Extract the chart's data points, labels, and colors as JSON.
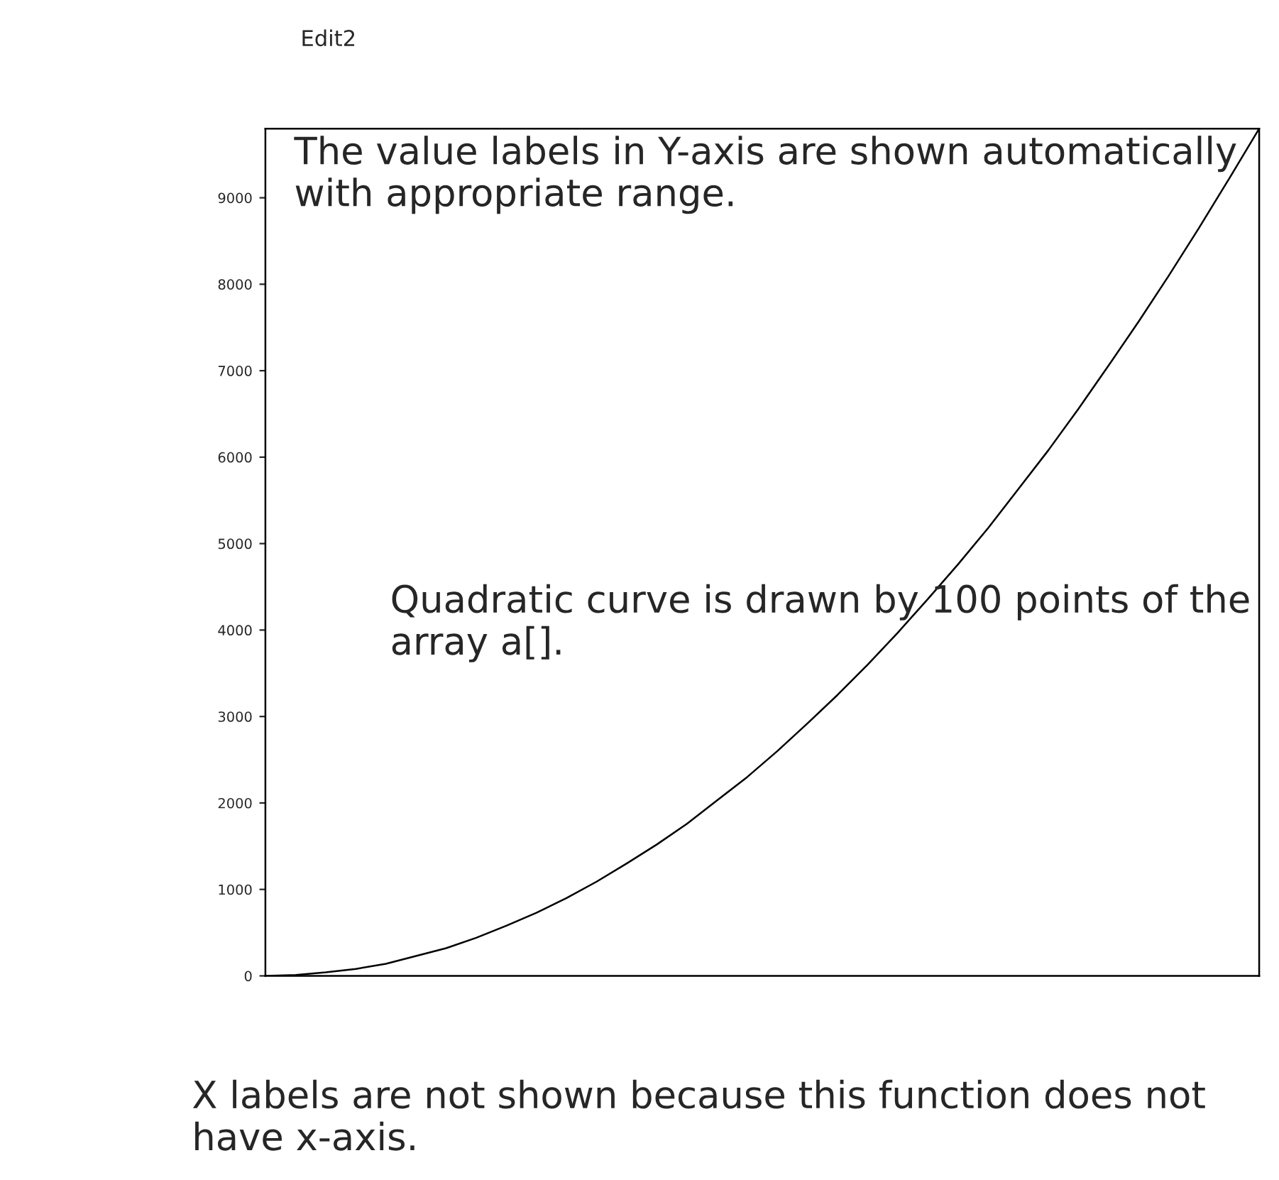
{
  "chart_data": {
    "type": "line",
    "categories": [
      null,
      null,
      null,
      null,
      null,
      null,
      null,
      null,
      null,
      null,
      null,
      null,
      null,
      null,
      null,
      null,
      null,
      null,
      null,
      null,
      null,
      null,
      null,
      null,
      null,
      null,
      null,
      null,
      null,
      null,
      null,
      null,
      null,
      null
    ],
    "series": [
      {
        "color": "#000000",
        "values": [
          0,
          10,
          40,
          80,
          140,
          230,
          320,
          440,
          580,
          730,
          900,
          1090,
          1300,
          1520,
          1760,
          2030,
          2300,
          2600,
          2920,
          3250,
          3600,
          3970,
          4360,
          4760,
          5180,
          5630,
          6080,
          6560,
          7060,
          7570,
          8100,
          8650,
          9220,
          9800
        ]
      }
    ],
    "ylim": [
      0,
      9800
    ],
    "yticks": [
      0,
      1000,
      2000,
      3000,
      4000,
      5000,
      6000,
      7000,
      8000,
      9000
    ],
    "tick_labels": "y",
    "grid": false,
    "legend": false,
    "marker": "none",
    "line_style": "solid",
    "annotations": [
      "Edit2",
      "The value labels in Y-axis are shown automatically with appropriate range.",
      "Quadratic curve is drawn by 100 points of the array a[].",
      "X labels are not shown because this function does not have x-axis."
    ]
  }
}
